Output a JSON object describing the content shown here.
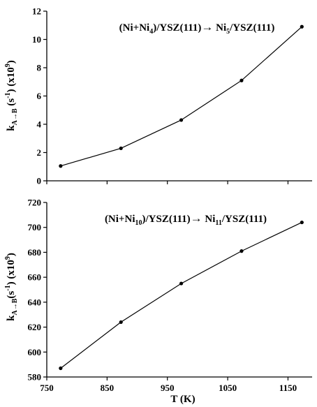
{
  "chart_data": [
    {
      "type": "line",
      "annotation": {
        "pre": "(Ni+Ni",
        "sub1": "4",
        "mid": ")/YSZ(111)",
        "arrow": "→",
        "post": " Ni",
        "sub2": "5",
        "tail": "/YSZ(111)"
      },
      "ylabel": {
        "k": "k",
        "sub": "A→B",
        "unit": " (s",
        "exp": "-1",
        "paren": ") (x10",
        "exp2": "9",
        "close": ")"
      },
      "xlabel": "",
      "xlim": [
        750,
        1190
      ],
      "ylim": [
        0,
        12
      ],
      "yticks": [
        0,
        2,
        4,
        6,
        8,
        10,
        12
      ],
      "grid": false,
      "series": [
        {
          "x": [
            773,
            873,
            973,
            1073,
            1173
          ],
          "y": [
            1.05,
            2.3,
            4.3,
            7.1,
            10.9
          ]
        }
      ]
    },
    {
      "type": "line",
      "annotation": {
        "pre": "(Ni+Ni",
        "sub1": "10",
        "mid": ")/YSZ(111)",
        "arrow": "→",
        "post": " Ni",
        "sub2": "11",
        "tail": "/YSZ(111)"
      },
      "ylabel": {
        "k": "k",
        "sub": "A→B",
        "unit": "(s",
        "exp": "-1",
        "paren": ") (x10",
        "exp2": "9",
        "close": ")"
      },
      "xlabel": "T (K)",
      "xlim": [
        750,
        1190
      ],
      "xticks": [
        750,
        850,
        950,
        1050,
        1150
      ],
      "ylim": [
        580,
        720
      ],
      "yticks": [
        580,
        600,
        620,
        640,
        660,
        680,
        700,
        720
      ],
      "grid": false,
      "series": [
        {
          "x": [
            773,
            873,
            973,
            1073,
            1173
          ],
          "y": [
            587,
            624,
            655,
            681,
            704
          ]
        }
      ]
    }
  ]
}
